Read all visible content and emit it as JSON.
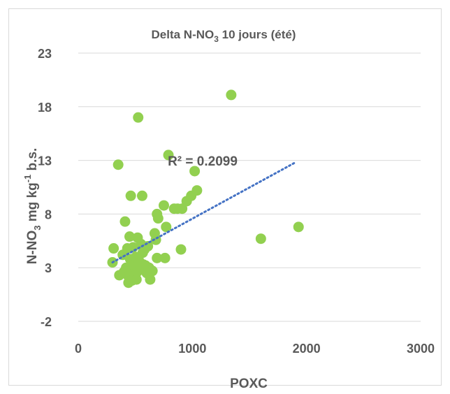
{
  "chart_data": {
    "type": "scatter",
    "title": "Delta N-NO",
    "title_subscript": "3",
    "title_suffix": " 10 jours (été)",
    "xlabel": "POXC",
    "ylabel_parts": [
      {
        "t": "N-NO",
        "s": "normal"
      },
      {
        "t": "3",
        "s": "sub"
      },
      {
        "t": " mg kg",
        "s": "normal"
      },
      {
        "t": "-1",
        "s": "sup"
      },
      {
        "t": " b.s.",
        "s": "normal"
      }
    ],
    "xlim": [
      0,
      3000
    ],
    "ylim": [
      -2,
      23
    ],
    "xticks": [
      0,
      1000,
      2000,
      3000
    ],
    "yticks": [
      -2,
      3,
      8,
      13,
      18,
      23
    ],
    "grid": "horizontal",
    "legend": "none",
    "marker_color": "#92d050",
    "trendline_color": "#4472c4",
    "annotation": "R² = 0.2099",
    "trendline": {
      "x": [
        300,
        1900
      ],
      "y": [
        3.5,
        12.8
      ]
    },
    "points": [
      {
        "x": 300,
        "y": 3.5
      },
      {
        "x": 310,
        "y": 4.8
      },
      {
        "x": 350,
        "y": 12.6
      },
      {
        "x": 360,
        "y": 2.3
      },
      {
        "x": 390,
        "y": 4.2
      },
      {
        "x": 400,
        "y": 2.6
      },
      {
        "x": 410,
        "y": 7.3
      },
      {
        "x": 420,
        "y": 3.0
      },
      {
        "x": 430,
        "y": 4.8
      },
      {
        "x": 440,
        "y": 2.2
      },
      {
        "x": 440,
        "y": 1.6
      },
      {
        "x": 450,
        "y": 5.9
      },
      {
        "x": 455,
        "y": 3.8
      },
      {
        "x": 460,
        "y": 9.7
      },
      {
        "x": 465,
        "y": 2.8
      },
      {
        "x": 470,
        "y": 1.8
      },
      {
        "x": 480,
        "y": 4.9
      },
      {
        "x": 490,
        "y": 3.4
      },
      {
        "x": 495,
        "y": 2.4
      },
      {
        "x": 500,
        "y": 3.0
      },
      {
        "x": 505,
        "y": 4.0
      },
      {
        "x": 510,
        "y": 1.9
      },
      {
        "x": 515,
        "y": 2.6
      },
      {
        "x": 520,
        "y": 5.8
      },
      {
        "x": 525,
        "y": 17.0
      },
      {
        "x": 530,
        "y": 3.7
      },
      {
        "x": 540,
        "y": 2.8
      },
      {
        "x": 550,
        "y": 5.2
      },
      {
        "x": 560,
        "y": 9.7
      },
      {
        "x": 565,
        "y": 4.4
      },
      {
        "x": 570,
        "y": 3.3
      },
      {
        "x": 580,
        "y": 4.7
      },
      {
        "x": 590,
        "y": 3.2
      },
      {
        "x": 600,
        "y": 2.5
      },
      {
        "x": 610,
        "y": 5.0
      },
      {
        "x": 620,
        "y": 3.0
      },
      {
        "x": 630,
        "y": 1.9
      },
      {
        "x": 650,
        "y": 2.7
      },
      {
        "x": 670,
        "y": 6.2
      },
      {
        "x": 680,
        "y": 5.6
      },
      {
        "x": 690,
        "y": 3.9
      },
      {
        "x": 690,
        "y": 8.0
      },
      {
        "x": 700,
        "y": 7.6
      },
      {
        "x": 750,
        "y": 8.8
      },
      {
        "x": 760,
        "y": 3.9
      },
      {
        "x": 770,
        "y": 6.8
      },
      {
        "x": 790,
        "y": 13.5
      },
      {
        "x": 840,
        "y": 8.5
      },
      {
        "x": 870,
        "y": 8.5
      },
      {
        "x": 900,
        "y": 4.7
      },
      {
        "x": 910,
        "y": 8.5
      },
      {
        "x": 950,
        "y": 9.2
      },
      {
        "x": 990,
        "y": 9.7
      },
      {
        "x": 1020,
        "y": 12.0
      },
      {
        "x": 1040,
        "y": 10.2
      },
      {
        "x": 1340,
        "y": 19.1
      },
      {
        "x": 1600,
        "y": 5.7
      },
      {
        "x": 1930,
        "y": 6.8
      }
    ]
  }
}
